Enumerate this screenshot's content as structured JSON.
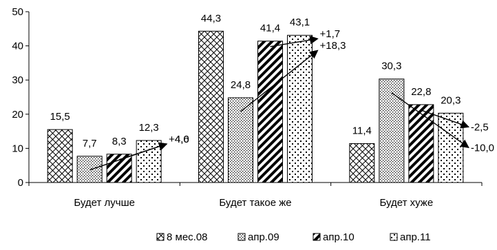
{
  "chart_data": {
    "type": "bar",
    "categories": [
      "Будет лучше",
      "Будет такое же",
      "Будет хуже"
    ],
    "series": [
      {
        "name": "8 мес.08",
        "pattern": "crosshatch",
        "values": [
          15.5,
          44.3,
          11.4
        ],
        "labels": [
          "15,5",
          "44,3",
          "11,4"
        ]
      },
      {
        "name": "апр.09",
        "pattern": "dots",
        "values": [
          7.7,
          24.8,
          30.3
        ],
        "labels": [
          "7,7",
          "24,8",
          "30,3"
        ]
      },
      {
        "name": "апр.10",
        "pattern": "diagonal",
        "values": [
          8.3,
          41.4,
          22.8
        ],
        "labels": [
          "8,3",
          "41,4",
          "22,8"
        ]
      },
      {
        "name": "апр.11",
        "pattern": "checker",
        "values": [
          12.3,
          43.1,
          20.3
        ],
        "labels": [
          "12,3",
          "43,1",
          "20,3"
        ]
      }
    ],
    "ylim": [
      0,
      50
    ],
    "yticks": [
      0,
      10,
      20,
      30,
      40,
      50
    ],
    "grid": false,
    "legend": "bottom",
    "annotations": [
      {
        "category": 0,
        "from_series": 2,
        "to_series": 3,
        "label": "+4,0"
      },
      {
        "category": 0,
        "from_series": 1,
        "to_series": 3,
        "label": "+4,6"
      },
      {
        "category": 1,
        "from_series": 2,
        "to_series": 3,
        "label": "+1,7"
      },
      {
        "category": 1,
        "from_series": 1,
        "to_series": 3,
        "label": "+18,3"
      },
      {
        "category": 2,
        "from_series": 2,
        "to_series": 3,
        "label": "-2,5"
      },
      {
        "category": 2,
        "from_series": 1,
        "to_series": 3,
        "label": "-10,0"
      }
    ]
  }
}
